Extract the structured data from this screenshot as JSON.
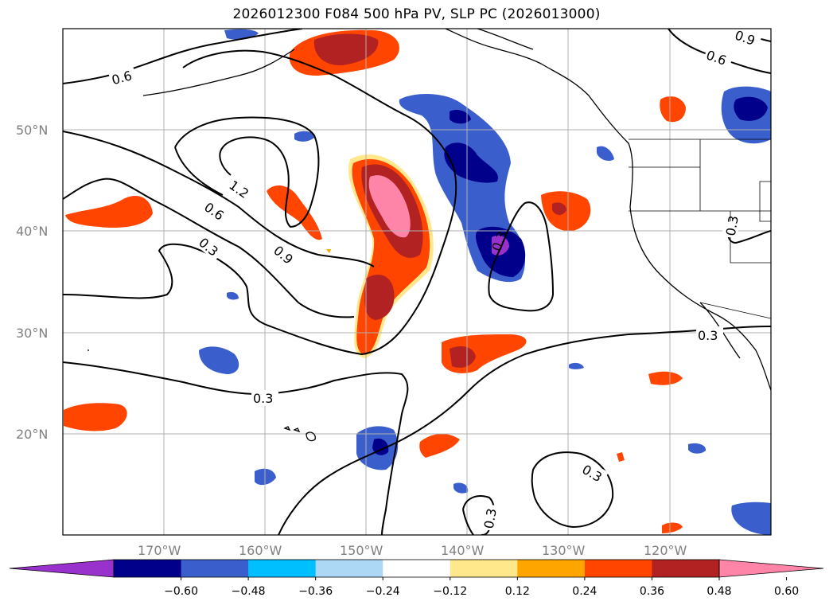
{
  "title": "2026012300 F084 500 hPa PV, SLP PC (2026013000)",
  "map": {
    "lat_labels": [
      "50°N",
      "40°N",
      "30°N",
      "20°N"
    ],
    "lon_labels": [
      "170°W",
      "160°W",
      "150°W",
      "140°W",
      "130°W",
      "120°W"
    ],
    "extent": {
      "lon_min": -180,
      "lon_max": -110,
      "lat_min": 10,
      "lat_max": 60
    },
    "gridlines": true
  },
  "colorbar": {
    "ticks": [
      "−0.60",
      "−0.48",
      "−0.36",
      "−0.24",
      "−0.12",
      "0.12",
      "0.24",
      "0.36",
      "0.48",
      "0.60"
    ],
    "colors": [
      "#9932cc",
      "#00008b",
      "#3a5fcd",
      "#00bfff",
      "#add8f5",
      "#ffffff",
      "#ffe78c",
      "#ffa500",
      "#ff4500",
      "#b22222",
      "#ff85a8"
    ],
    "extend": "both"
  },
  "contour_labels": [
    "0.6",
    "1.2",
    "0.6",
    "0.3",
    "0.9",
    "0.3",
    "0.3",
    "0.3",
    "0.3",
    "0.3",
    "0.6",
    "0.9",
    "0.3"
  ]
}
